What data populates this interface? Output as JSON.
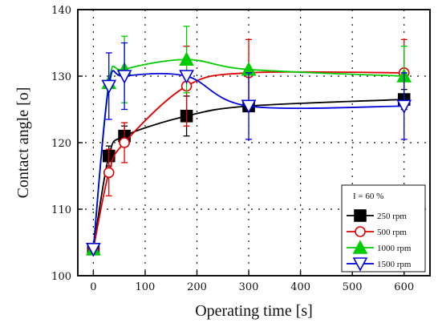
{
  "chart_data": {
    "type": "line",
    "xlabel": "Operating time [s]",
    "ylabel": "Contact angle [o]",
    "xlim": [
      -30,
      650
    ],
    "ylim": [
      100,
      140
    ],
    "xticks": [
      0,
      100,
      200,
      300,
      400,
      500,
      600
    ],
    "xtick_labels": [
      "0",
      "100",
      "200",
      "300",
      "400",
      "500",
      "600"
    ],
    "yticks": [
      100,
      110,
      120,
      130,
      140
    ],
    "ytick_labels": [
      "100",
      "110",
      "120",
      "130",
      "140"
    ],
    "grid": true,
    "legend_position": "bottom-right",
    "legend_title": "I = 60 %",
    "x": [
      0,
      30,
      60,
      180,
      300,
      600
    ],
    "series": [
      {
        "name": "250 rpm",
        "color": "#000000",
        "marker": "square-filled",
        "values": [
          104,
          118,
          121,
          124,
          125.5,
          126.5
        ],
        "err": [
          0,
          1.5,
          1.5,
          3,
          0,
          1.5
        ]
      },
      {
        "name": "500 rpm",
        "color": "#e00000",
        "marker": "circle-open",
        "values": [
          104,
          115.5,
          120,
          128.5,
          130.5,
          130.5
        ],
        "err": [
          0,
          3.5,
          3,
          6,
          5,
          5
        ]
      },
      {
        "name": "1000 rpm",
        "color": "#00cc00",
        "marker": "triangle-up-filled",
        "values": [
          104,
          129,
          131,
          132.5,
          131,
          130
        ],
        "err": [
          0,
          0,
          5,
          5,
          0,
          4.5
        ]
      },
      {
        "name": "1500 rpm",
        "color": "#0000dd",
        "marker": "triangle-down-open",
        "values": [
          104,
          128.5,
          130,
          130,
          125.5,
          125.5
        ],
        "err": [
          0,
          5,
          5,
          0,
          5,
          5
        ]
      }
    ]
  }
}
